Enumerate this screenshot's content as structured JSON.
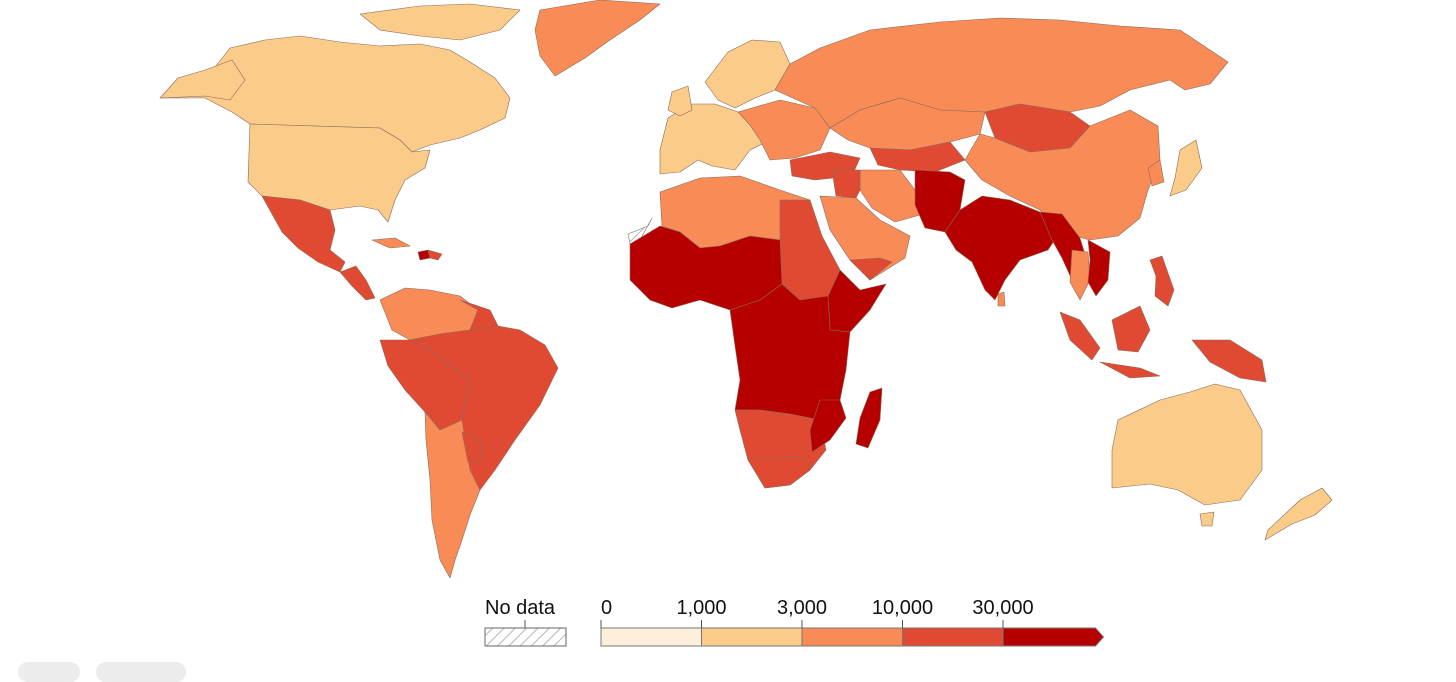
{
  "legend": {
    "no_data_label": "No data",
    "bins": [
      {
        "label": "0",
        "color": "#fdefdc"
      },
      {
        "label": "1,000",
        "color": "#fbcb89"
      },
      {
        "label": "3,000",
        "color": "#f98c56"
      },
      {
        "label": "10,000",
        "color": "#e04a33"
      },
      {
        "label": "30,000",
        "color": "#b60000"
      }
    ]
  },
  "colors": {
    "c1": "#fbcb89",
    "c2": "#f98c56",
    "c3": "#e04a33",
    "c4": "#b60000",
    "nodata_hatch": "#c8c8c8"
  }
}
